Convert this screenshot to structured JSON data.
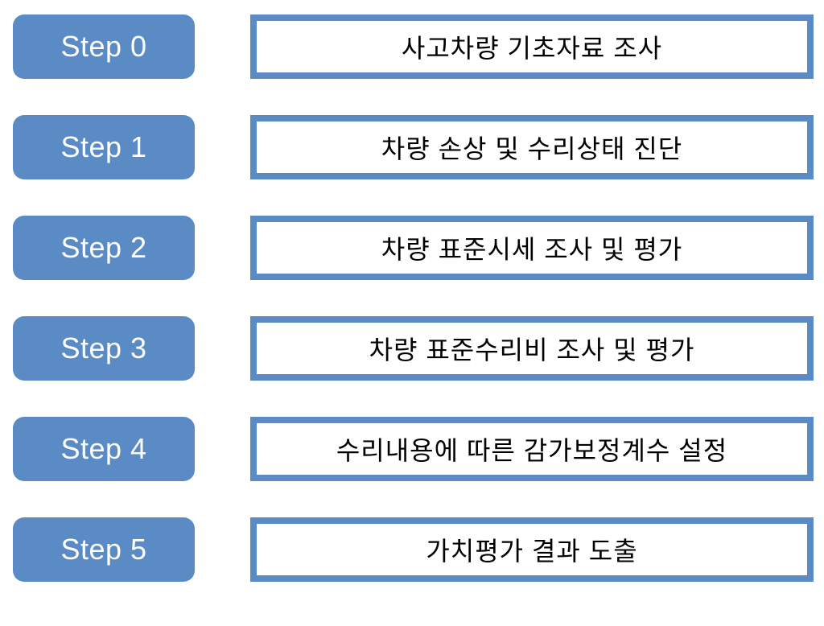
{
  "diagram": {
    "type": "flowchart",
    "background_color": "#ffffff",
    "step_label_bg_color": "#5b8bc5",
    "step_label_text_color": "#ffffff",
    "step_label_border_radius": 14,
    "step_label_width": 226,
    "step_label_height": 80,
    "step_label_fontsize": 36,
    "description_border_color": "#5b8bc5",
    "description_border_width": 8,
    "description_bg_color": "#ffffff",
    "description_text_color": "#000000",
    "description_width": 700,
    "description_height": 80,
    "description_fontsize": 32,
    "row_gap": 45,
    "column_gap": 69,
    "steps": [
      {
        "label": "Step 0",
        "description": "사고차량 기초자료 조사"
      },
      {
        "label": "Step 1",
        "description": "차량 손상 및 수리상태 진단"
      },
      {
        "label": "Step 2",
        "description": "차량 표준시세 조사 및 평가"
      },
      {
        "label": "Step 3",
        "description": "차량 표준수리비 조사 및 평가"
      },
      {
        "label": "Step 4",
        "description": "수리내용에 따른 감가보정계수 설정"
      },
      {
        "label": "Step 5",
        "description": "가치평가 결과 도출"
      }
    ]
  }
}
